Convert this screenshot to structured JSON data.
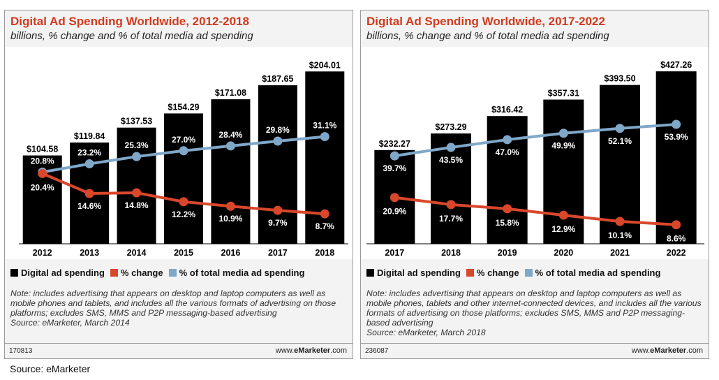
{
  "chart_data": [
    {
      "type": "bar",
      "title": "Digital Ad Spending Worldwide, 2012-2018",
      "subtitle": "billions, % change and % of total media ad spending",
      "categories": [
        "2012",
        "2013",
        "2014",
        "2015",
        "2016",
        "2017",
        "2018"
      ],
      "bar_series": {
        "name": "Digital ad spending",
        "values": [
          104.58,
          119.84,
          137.53,
          154.29,
          171.08,
          187.65,
          204.01
        ],
        "labels": [
          "$104.58",
          "$119.84",
          "$137.53",
          "$154.29",
          "$171.08",
          "$187.65",
          "$204.01"
        ],
        "color": "#000000"
      },
      "line_series": [
        {
          "name": "% change",
          "values": [
            20.4,
            14.6,
            14.8,
            12.2,
            10.9,
            9.7,
            8.7
          ],
          "labels": [
            "20.4%",
            "14.6%",
            "14.8%",
            "12.2%",
            "10.9%",
            "9.7%",
            "8.7%"
          ],
          "color": "#d9472b"
        },
        {
          "name": "% of total media ad spending",
          "values": [
            20.8,
            23.2,
            25.3,
            27.0,
            28.4,
            29.8,
            31.1
          ],
          "labels": [
            "20.8%",
            "23.2%",
            "25.3%",
            "27.0%",
            "28.4%",
            "29.8%",
            "31.1%"
          ],
          "color": "#7fa7c8"
        }
      ],
      "legend": [
        "Digital ad spending",
        "% change",
        "% of total media ad spending"
      ],
      "note": "Note: includes advertising that appears on desktop and laptop computers as well as mobile phones and tablets, and includes all the various formats of advertising on those platforms; excludes SMS, MMS and P2P messaging-based advertising",
      "source": "Source: eMarketer, March 2014",
      "code": "170813",
      "brand_prefix": "www.",
      "brand_name": "eMarketer",
      "brand_suffix": ".com"
    },
    {
      "type": "bar",
      "title": "Digital Ad Spending Worldwide, 2017-2022",
      "subtitle": "billions, % change and % of total media ad spending",
      "categories": [
        "2017",
        "2018",
        "2019",
        "2020",
        "2021",
        "2022"
      ],
      "bar_series": {
        "name": "Digital ad spending",
        "values": [
          232.27,
          273.29,
          316.42,
          357.31,
          393.5,
          427.26
        ],
        "labels": [
          "$232.27",
          "$273.29",
          "$316.42",
          "$357.31",
          "$393.50",
          "$427.26"
        ],
        "color": "#000000"
      },
      "line_series": [
        {
          "name": "% change",
          "values": [
            20.9,
            17.7,
            15.8,
            12.9,
            10.1,
            8.6
          ],
          "labels": [
            "20.9%",
            "17.7%",
            "15.8%",
            "12.9%",
            "10.1%",
            "8.6%"
          ],
          "color": "#d9472b"
        },
        {
          "name": "% of total media ad spending",
          "values": [
            39.7,
            43.5,
            47.0,
            49.9,
            52.1,
            53.9
          ],
          "labels": [
            "39.7%",
            "43.5%",
            "47.0%",
            "49.9%",
            "52.1%",
            "53.9%"
          ],
          "color": "#7fa7c8"
        }
      ],
      "legend": [
        "Digital ad spending",
        "% change",
        "% of total media ad spending"
      ],
      "note": "Note: includes advertising that appears on desktop and laptop computers as well as mobile phones, tablets and other internet-connected devices, and includes all the various formats of advertising on those platforms; excludes SMS, MMS and P2P messaging-based advertising",
      "source": "Source: eMarketer, March 2018",
      "code": "236087",
      "brand_prefix": "www.",
      "brand_name": "eMarketer",
      "brand_suffix": ".com"
    }
  ],
  "caption": "Source: eMarketer"
}
